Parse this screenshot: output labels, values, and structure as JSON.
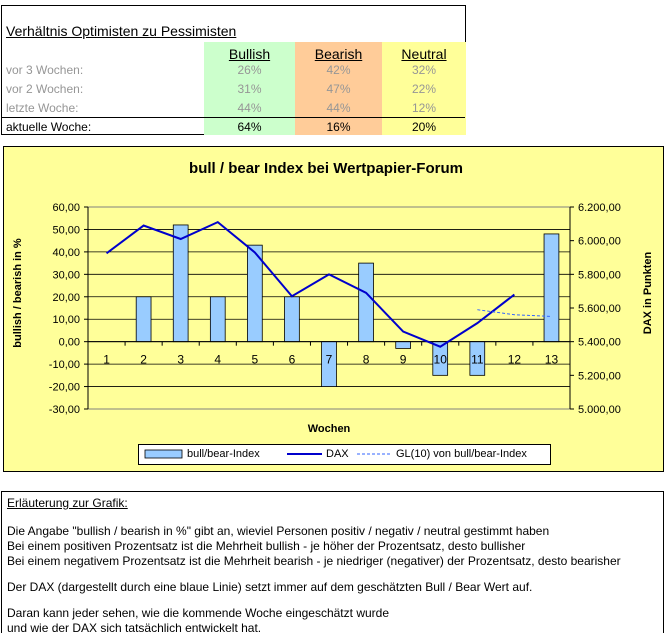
{
  "table": {
    "title": "Verhältnis Optimisten zu Pessimisten",
    "headers": {
      "bullish": "Bullish",
      "bearish": "Bearish",
      "neutral": "Neutral"
    },
    "colors": {
      "bullish": "#ccffcc",
      "bearish": "#ffcc99",
      "neutral": "#ffff99"
    },
    "rows": [
      {
        "label": "vor 3 Wochen:",
        "bullish": "26%",
        "bearish": "42%",
        "neutral": "32%"
      },
      {
        "label": "vor 2 Wochen:",
        "bullish": "31%",
        "bearish": "47%",
        "neutral": "22%"
      },
      {
        "label": "letzte Woche:",
        "bullish": "44%",
        "bearish": "44%",
        "neutral": "12%"
      },
      {
        "label": "aktuelle Woche:",
        "bullish": "64%",
        "bearish": "16%",
        "neutral": "20%"
      }
    ]
  },
  "chart_data": {
    "type": "bar",
    "title": "bull / bear Index bei Wertpapier-Forum",
    "xlabel": "Wochen",
    "ylabel": "bullish / bearish in %",
    "y2label": "DAX in Punkten",
    "categories": [
      "1",
      "2",
      "3",
      "4",
      "5",
      "6",
      "7",
      "8",
      "9",
      "10",
      "11",
      "12",
      "13"
    ],
    "ylim": [
      -30,
      60
    ],
    "yticks": [
      60,
      50,
      40,
      30,
      20,
      10,
      0,
      -10,
      -20,
      -30
    ],
    "ytick_labels": [
      "60,00",
      "50,00",
      "40,00",
      "30,00",
      "20,00",
      "10,00",
      "0,00",
      "-10,00",
      "-20,00",
      "-30,00"
    ],
    "y2lim": [
      5000,
      6200
    ],
    "y2ticks": [
      6200,
      6000,
      5800,
      5600,
      5400,
      5200,
      5000
    ],
    "y2tick_labels": [
      "6.200,00",
      "6.000,00",
      "5.800,00",
      "5.600,00",
      "5.400,00",
      "5.200,00",
      "5.000,00"
    ],
    "series": [
      {
        "name": "bull/bear-Index",
        "kind": "bar",
        "color": "#99ccff",
        "values": [
          null,
          20,
          52,
          20,
          43,
          20,
          -20,
          35,
          -3,
          -15,
          -15,
          null,
          48
        ]
      },
      {
        "name": "DAX",
        "kind": "line",
        "axis": "right",
        "color": "#0000cc",
        "values": [
          5925,
          6090,
          6010,
          6110,
          5930,
          5670,
          5800,
          5690,
          5460,
          5370,
          5510,
          5680,
          null
        ]
      },
      {
        "name": "GL(10) von bull/bear-Index",
        "kind": "line-dashed",
        "axis": "right",
        "color": "#3366ff",
        "points": [
          [
            11,
            5590
          ],
          [
            12,
            5560
          ],
          [
            13,
            5550
          ]
        ]
      }
    ],
    "grid": true,
    "legend": "bottom"
  },
  "explanation": {
    "heading": "Erläuterung zur Grafik:",
    "lines": [
      "Die Angabe \"bullish / bearish in %\" gibt an, wieviel Personen positiv / negativ / neutral gestimmt haben",
      "Bei einem positiven Prozentsatz ist die Mehrheit bullish - je höher der Prozentsatz, desto bullisher",
      "Bei einem negativem Prozentsatz ist die Mehrheit bearish - je niedriger (negativer) der Prozentsatz, desto bearisher",
      "Der DAX (dargestellt durch eine blaue Linie) setzt immer auf dem geschätzten Bull / Bear Wert auf.",
      "Daran kann jeder sehen, wie die kommende Woche eingeschätzt wurde",
      "und wie der DAX sich tatsächlich entwickelt hat."
    ]
  }
}
